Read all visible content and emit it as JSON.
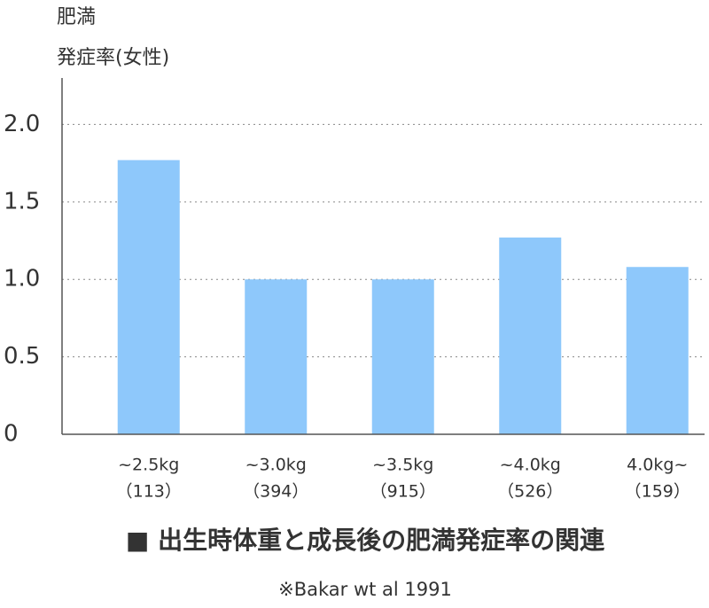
{
  "chart_data": {
    "type": "bar",
    "title": "■ 出生時体重と成長後の肥満発症率の関連",
    "note": "※Bakar wt al 1991",
    "ylabel": [
      "肥満",
      "発症率(女性)"
    ],
    "categories": [
      "~2.5kg",
      "~3.0kg",
      "~3.5kg",
      "~4.0kg",
      "4.0kg~"
    ],
    "sample_sizes": [
      "（113）",
      "（394）",
      "（915）",
      "（526）",
      "（159）"
    ],
    "values": [
      1.77,
      1.0,
      1.0,
      1.27,
      1.08
    ],
    "color": "#8ec8fb",
    "ylim": [
      0,
      2.3
    ],
    "yticks": [
      0,
      0.5,
      {
        "value": 1,
        "label": "1.0"
      },
      1.5,
      {
        "value": 2,
        "label": "2.0"
      }
    ],
    "grid": true
  }
}
